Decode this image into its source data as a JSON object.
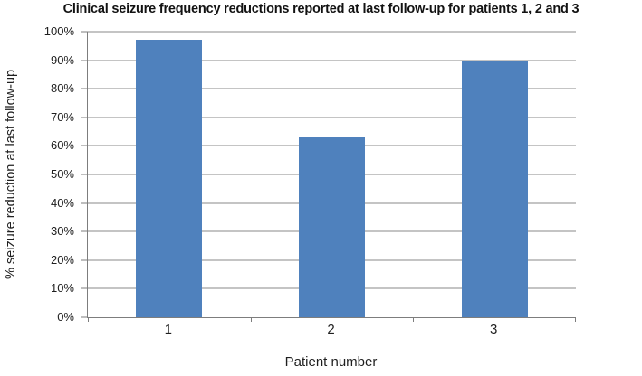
{
  "chart_data": {
    "type": "bar",
    "title": "Clinical seizure frequency reductions reported at last follow-up for patients 1, 2 and 3",
    "xlabel": "Patient number",
    "ylabel": "% seizure reduction at last follow-up",
    "categories": [
      "1",
      "2",
      "3"
    ],
    "values": [
      97,
      63,
      90
    ],
    "ylim": [
      0,
      100
    ],
    "ytick_step": 10,
    "ytick_labels": [
      "0%",
      "10%",
      "20%",
      "30%",
      "40%",
      "50%",
      "60%",
      "70%",
      "80%",
      "90%",
      "100%"
    ],
    "grid": "horizontal",
    "legend": "none",
    "colors": {
      "bar": "#4f81bd",
      "gridline": "#8a8a8a",
      "axis": "#7d7d7d",
      "text": "#1f1f1f",
      "title_text": "#121212",
      "background": "#ffffff"
    }
  }
}
